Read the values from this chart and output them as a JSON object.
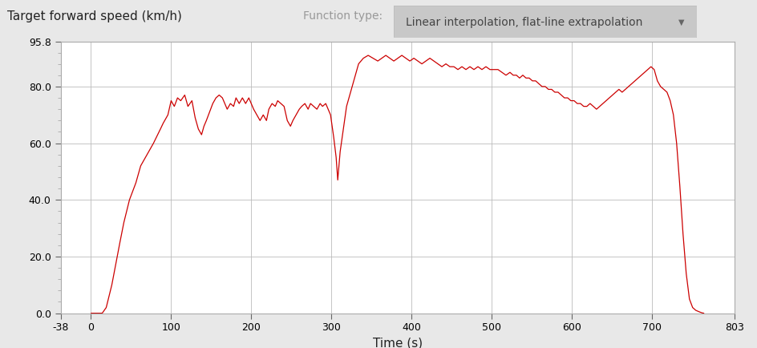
{
  "ylabel_top": "Target forward speed (km/h)",
  "xlabel": "Time (s)",
  "function_type_label": "Function type:",
  "function_type_value": "Linear interpolation, flat-line extrapolation",
  "line_color": "#cc0000",
  "background_color": "#e8e8e8",
  "plot_bg_color": "#ffffff",
  "grid_color": "#bbbbbb",
  "xlim": [
    -38,
    803
  ],
  "ylim": [
    0,
    95.8
  ],
  "yticks": [
    0.0,
    20.0,
    40.0,
    60.0,
    80.0,
    95.8
  ],
  "xticks": [
    -38,
    0,
    100,
    200,
    300,
    400,
    500,
    600,
    700,
    803
  ],
  "title_color": "#222222",
  "label_fontsize": 11,
  "annotation_fontsize": 10,
  "tick_fontsize": 9,
  "waypoints_t": [
    0,
    14,
    19,
    26,
    34,
    41,
    48,
    56,
    62,
    70,
    78,
    85,
    90,
    96,
    100,
    104,
    108,
    112,
    117,
    121,
    126,
    130,
    134,
    138,
    141,
    144,
    148,
    152,
    156,
    160,
    164,
    167,
    170,
    174,
    178,
    181,
    185,
    189,
    193,
    197,
    200,
    203,
    207,
    211,
    215,
    219,
    222,
    226,
    230,
    233,
    237,
    241,
    245,
    249,
    252,
    256,
    260,
    263,
    267,
    271,
    274,
    278,
    282,
    286,
    289,
    293,
    296,
    299,
    303,
    306,
    308,
    311,
    315,
    319,
    322,
    326,
    330,
    334,
    340,
    346,
    352,
    358,
    363,
    368,
    373,
    378,
    383,
    388,
    393,
    398,
    403,
    408,
    413,
    418,
    423,
    428,
    433,
    438,
    443,
    448,
    453,
    458,
    463,
    468,
    473,
    478,
    483,
    488,
    493,
    498,
    503,
    508,
    513,
    518,
    523,
    527,
    531,
    535,
    539,
    543,
    547,
    551,
    555,
    559,
    563,
    567,
    571,
    575,
    579,
    583,
    587,
    591,
    595,
    599,
    603,
    607,
    611,
    615,
    619,
    623,
    627,
    631,
    635,
    639,
    643,
    647,
    651,
    655,
    659,
    663,
    667,
    671,
    675,
    679,
    683,
    687,
    691,
    695,
    699,
    703,
    707,
    711,
    715,
    719,
    723,
    727,
    731,
    735,
    739,
    743,
    747,
    751,
    755,
    759,
    763,
    765
  ],
  "waypoints_v": [
    0,
    0,
    2,
    10,
    22,
    32,
    40,
    46,
    52,
    56,
    60,
    64,
    67,
    70,
    75,
    73,
    76,
    75,
    77,
    73,
    75,
    69,
    65,
    63,
    66,
    68,
    71,
    74,
    76,
    77,
    76,
    74,
    72,
    74,
    73,
    76,
    74,
    76,
    74,
    76,
    74,
    72,
    70,
    68,
    70,
    68,
    72,
    74,
    73,
    75,
    74,
    73,
    68,
    66,
    68,
    70,
    72,
    73,
    74,
    72,
    74,
    73,
    72,
    74,
    73,
    74,
    72,
    70,
    62,
    55,
    47,
    57,
    65,
    73,
    76,
    80,
    84,
    88,
    90,
    91,
    90,
    89,
    90,
    91,
    90,
    89,
    90,
    91,
    90,
    89,
    90,
    89,
    88,
    89,
    90,
    89,
    88,
    87,
    88,
    87,
    87,
    86,
    87,
    86,
    87,
    86,
    87,
    86,
    87,
    86,
    86,
    86,
    85,
    84,
    85,
    84,
    84,
    83,
    84,
    83,
    83,
    82,
    82,
    81,
    80,
    80,
    79,
    79,
    78,
    78,
    77,
    76,
    76,
    75,
    75,
    74,
    74,
    73,
    73,
    74,
    73,
    72,
    73,
    74,
    75,
    76,
    77,
    78,
    79,
    78,
    79,
    80,
    81,
    82,
    83,
    84,
    85,
    86,
    87,
    86,
    82,
    80,
    79,
    78,
    75,
    70,
    60,
    45,
    28,
    14,
    5,
    2,
    1,
    0.5,
    0.1,
    0
  ]
}
